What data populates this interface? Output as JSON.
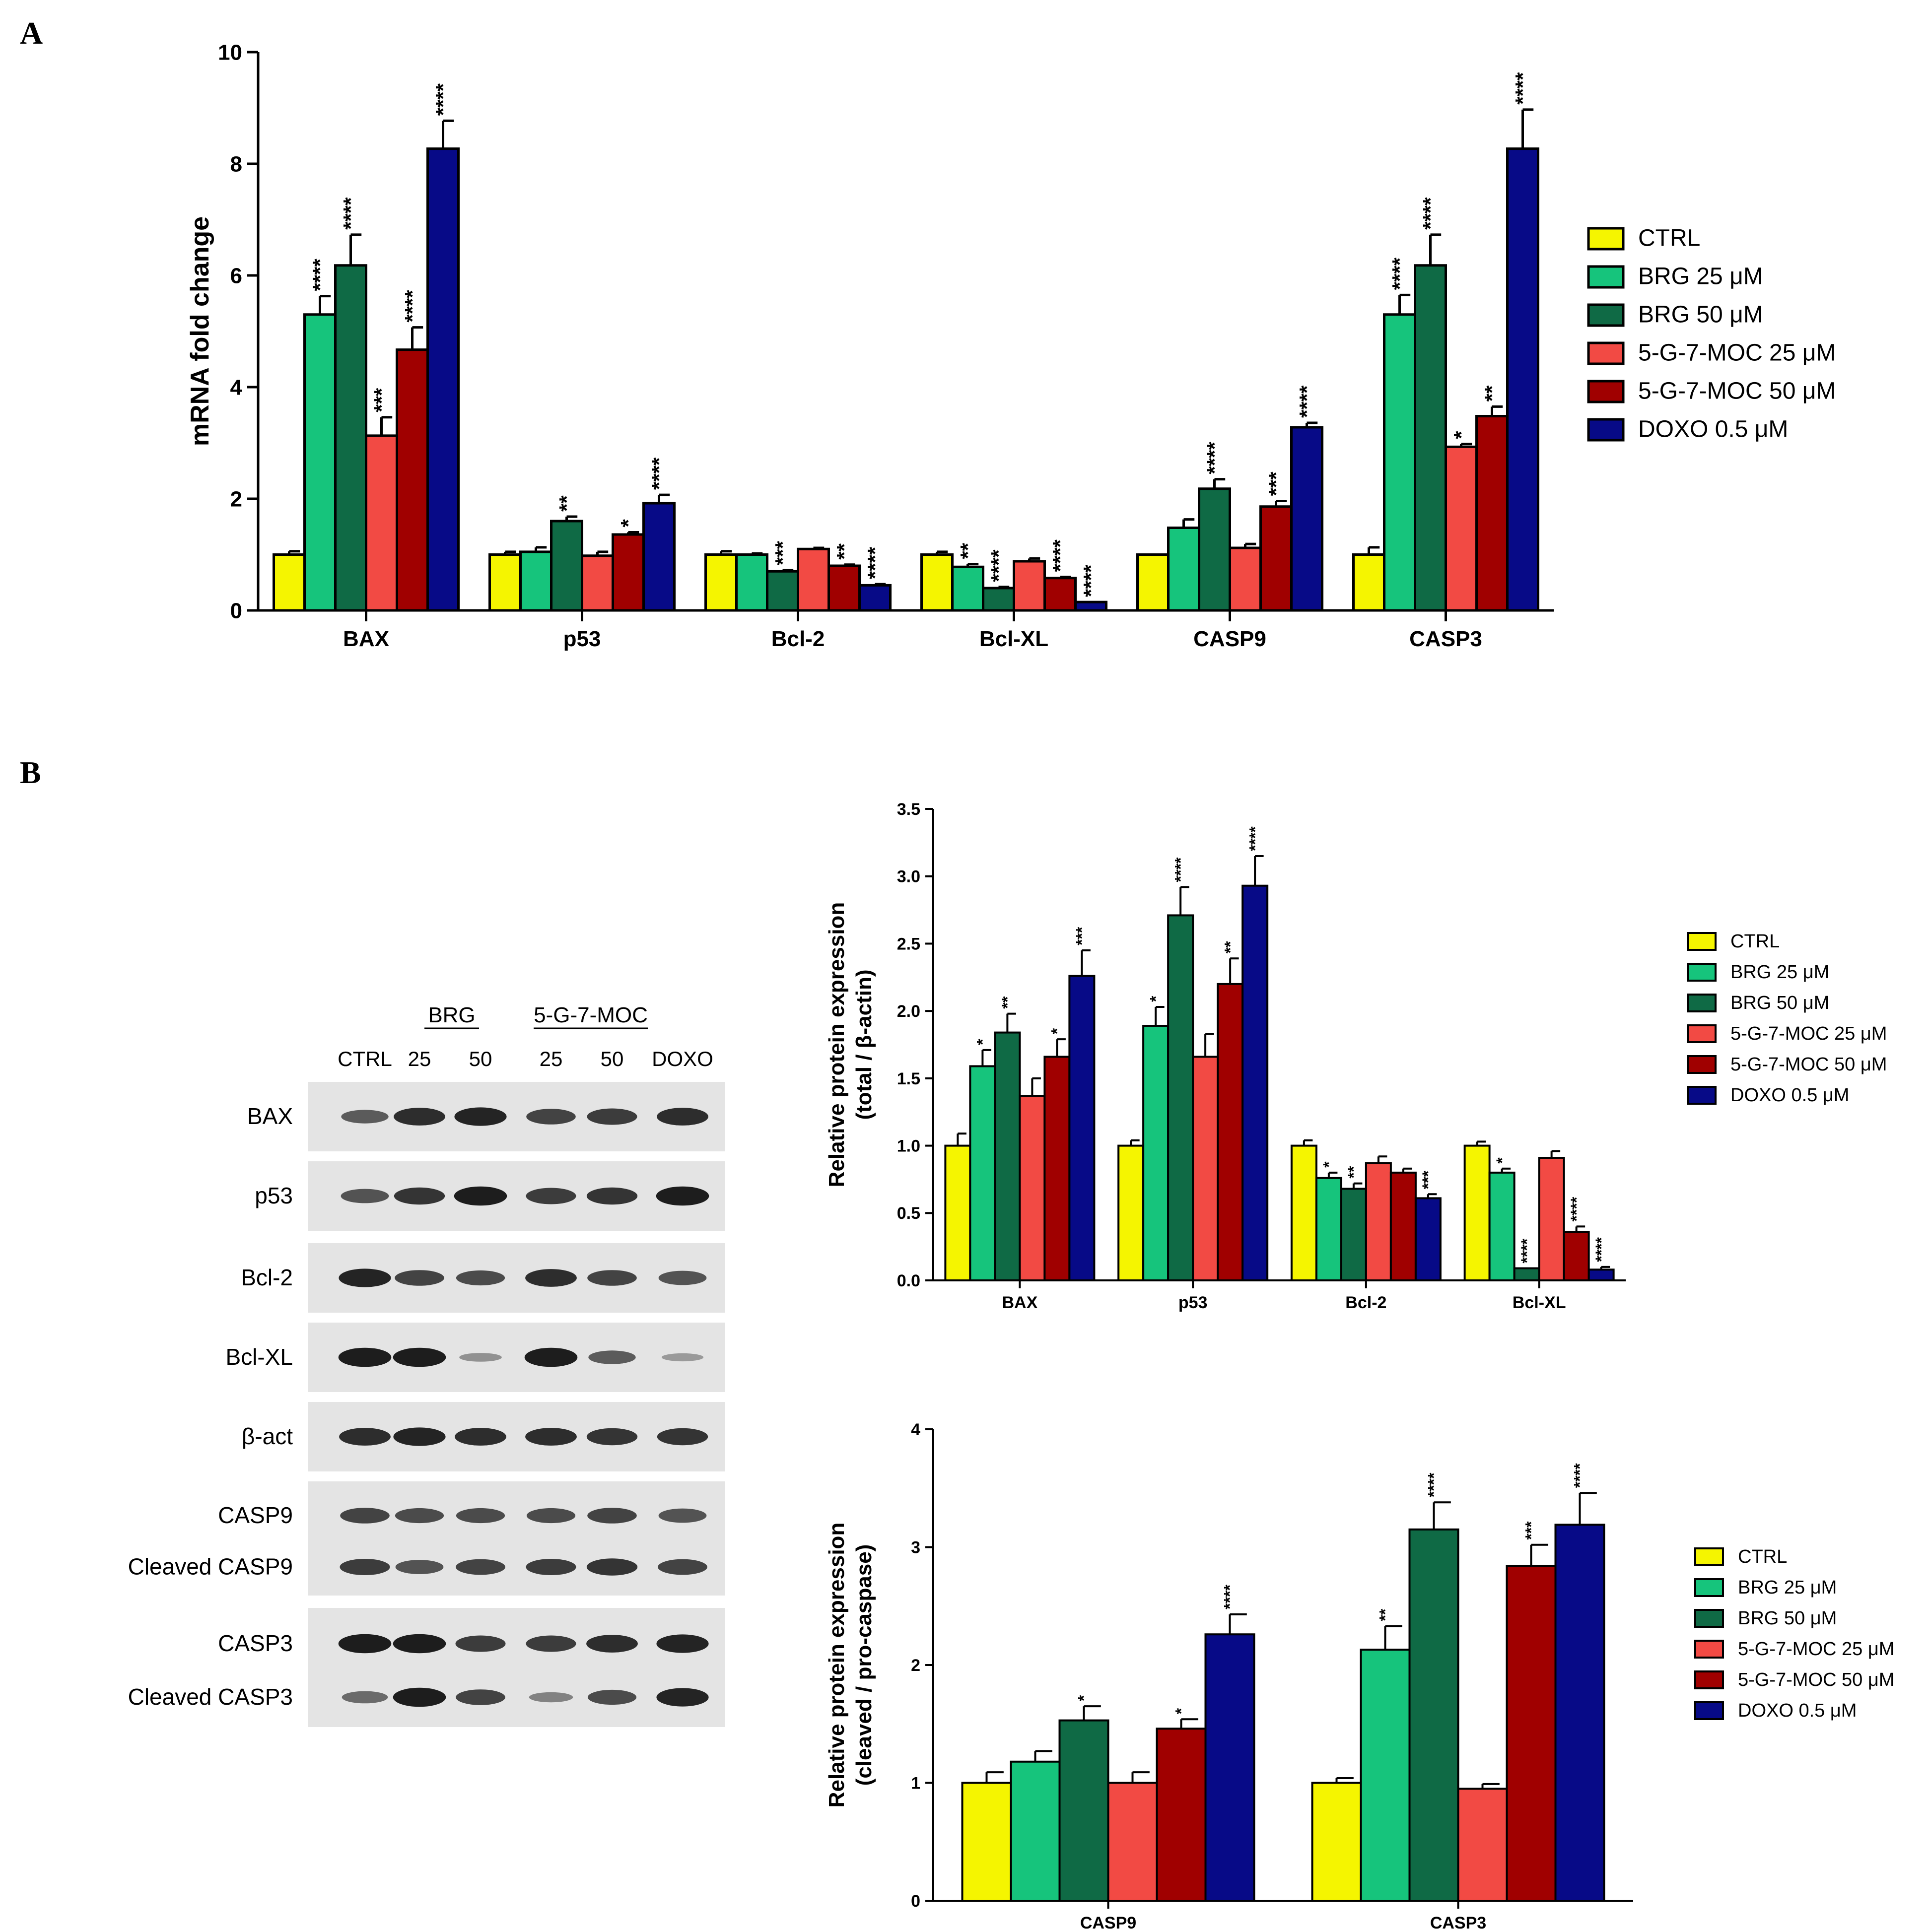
{
  "panel_a_label": "A",
  "panel_b_label": "B",
  "colors": {
    "series": [
      "#f5f500",
      "#16c47c",
      "#0f6a45",
      "#f24a44",
      "#a00000",
      "#070a87"
    ],
    "axis": "#000000",
    "blot_bg": "#e4e4e4",
    "band": "#151515"
  },
  "chart_data": [
    {
      "id": "chart-a",
      "type": "bar",
      "title": "",
      "xlabel": "",
      "ylabel": "mRNA fold change",
      "ylim": [
        0,
        10
      ],
      "yticks": [
        "0",
        "2",
        "4",
        "6",
        "8",
        "10"
      ],
      "legend_position": "right",
      "categories": [
        "BAX",
        "p53",
        "Bcl-2",
        "Bcl-XL",
        "CASP9",
        "CASP3"
      ],
      "series": [
        {
          "name": "CTRL",
          "values": [
            1.0,
            1.0,
            1.0,
            1.0,
            1.0,
            1.0
          ],
          "errors": [
            0.06,
            0.05,
            0.06,
            0.05,
            0.0,
            0.13
          ],
          "sig": [
            "",
            "",
            "",
            "",
            "",
            ""
          ]
        },
        {
          "name": "BRG 25 μM",
          "values": [
            5.3,
            1.05,
            1.0,
            0.78,
            1.48,
            5.3
          ],
          "errors": [
            0.33,
            0.08,
            0.02,
            0.05,
            0.15,
            0.35
          ],
          "sig": [
            "****",
            "",
            "",
            "**",
            "",
            "****"
          ]
        },
        {
          "name": "BRG 50 μM",
          "values": [
            6.18,
            1.6,
            0.7,
            0.4,
            2.18,
            6.18
          ],
          "errors": [
            0.55,
            0.08,
            0.02,
            0.02,
            0.17,
            0.55
          ],
          "sig": [
            "****",
            "**",
            "***",
            "****",
            "****",
            "****"
          ]
        },
        {
          "name": "5-G-7-MOC 25 μM",
          "values": [
            3.13,
            0.98,
            1.1,
            0.88,
            1.12,
            2.93
          ],
          "errors": [
            0.33,
            0.07,
            0.02,
            0.05,
            0.07,
            0.05
          ],
          "sig": [
            "***",
            "",
            "",
            "",
            "",
            "*"
          ]
        },
        {
          "name": "5-G-7-MOC 50 μM",
          "values": [
            4.67,
            1.36,
            0.8,
            0.58,
            1.86,
            3.48
          ],
          "errors": [
            0.4,
            0.04,
            0.02,
            0.02,
            0.1,
            0.17
          ],
          "sig": [
            "****",
            "*",
            "**",
            "****",
            "***",
            "**"
          ]
        },
        {
          "name": "DOXO 0.5 μM",
          "values": [
            8.27,
            1.92,
            0.45,
            0.15,
            3.28,
            8.27
          ],
          "errors": [
            0.5,
            0.15,
            0.02,
            0.0,
            0.08,
            0.7
          ],
          "sig": [
            "****",
            "****",
            "****",
            "****",
            "****",
            "****"
          ]
        }
      ]
    },
    {
      "id": "chart-b1",
      "type": "bar",
      "title": "",
      "xlabel": "",
      "ylabel": [
        "Relative protein expression",
        "(total / β-actin)"
      ],
      "ylim": [
        0,
        3.5
      ],
      "yticks": [
        "0.0",
        "0.5",
        "1.0",
        "1.5",
        "2.0",
        "2.5",
        "3.0",
        "3.5"
      ],
      "legend_position": "right",
      "categories": [
        "BAX",
        "p53",
        "Bcl-2",
        "Bcl-XL"
      ],
      "series": [
        {
          "name": "CTRL",
          "values": [
            1.0,
            1.0,
            1.0,
            1.0
          ],
          "errors": [
            0.09,
            0.04,
            0.04,
            0.03
          ],
          "sig": [
            "",
            "",
            "",
            ""
          ]
        },
        {
          "name": "BRG 25 μM",
          "values": [
            1.59,
            1.89,
            0.76,
            0.8
          ],
          "errors": [
            0.12,
            0.14,
            0.04,
            0.03
          ],
          "sig": [
            "*",
            "*",
            "*",
            "*"
          ]
        },
        {
          "name": "BRG 50 μM",
          "values": [
            1.84,
            2.71,
            0.68,
            0.09
          ],
          "errors": [
            0.14,
            0.21,
            0.04,
            0.0
          ],
          "sig": [
            "**",
            "****",
            "**",
            "****"
          ]
        },
        {
          "name": "5-G-7-MOC 25 μM",
          "values": [
            1.37,
            1.66,
            0.87,
            0.91
          ],
          "errors": [
            0.13,
            0.17,
            0.05,
            0.05
          ],
          "sig": [
            "",
            "",
            "",
            ""
          ]
        },
        {
          "name": "5-G-7-MOC 50 μM",
          "values": [
            1.66,
            2.2,
            0.8,
            0.36
          ],
          "errors": [
            0.13,
            0.19,
            0.03,
            0.04
          ],
          "sig": [
            "*",
            "**",
            "",
            "****"
          ]
        },
        {
          "name": "DOXO 0.5 μM",
          "values": [
            2.26,
            2.93,
            0.61,
            0.08
          ],
          "errors": [
            0.19,
            0.22,
            0.03,
            0.02
          ],
          "sig": [
            "***",
            "****",
            "***",
            "****"
          ]
        }
      ]
    },
    {
      "id": "chart-b2",
      "type": "bar",
      "title": "",
      "xlabel": "",
      "ylabel": [
        "Relative protein expression",
        "(cleaved / pro-caspase)"
      ],
      "ylim": [
        0,
        4
      ],
      "yticks": [
        "0",
        "1",
        "2",
        "3",
        "4"
      ],
      "legend_position": "right",
      "categories": [
        "CASP9",
        "CASP3"
      ],
      "series": [
        {
          "name": "CTRL",
          "values": [
            1.0,
            1.0
          ],
          "errors": [
            0.09,
            0.04
          ],
          "sig": [
            "",
            ""
          ]
        },
        {
          "name": "BRG 25 μM",
          "values": [
            1.18,
            2.13
          ],
          "errors": [
            0.09,
            0.2
          ],
          "sig": [
            "",
            "**"
          ]
        },
        {
          "name": "BRG 50 μM",
          "values": [
            1.53,
            3.15
          ],
          "errors": [
            0.12,
            0.23
          ],
          "sig": [
            "*",
            "****"
          ]
        },
        {
          "name": "5-G-7-MOC 25 μM",
          "values": [
            1.0,
            0.95
          ],
          "errors": [
            0.09,
            0.04
          ],
          "sig": [
            "",
            ""
          ]
        },
        {
          "name": "5-G-7-MOC 50 μM",
          "values": [
            1.46,
            2.84
          ],
          "errors": [
            0.08,
            0.18
          ],
          "sig": [
            "*",
            "***"
          ]
        },
        {
          "name": "DOXO 0.5 μM",
          "values": [
            2.26,
            3.19
          ],
          "errors": [
            0.17,
            0.27
          ],
          "sig": [
            "****",
            "****"
          ]
        }
      ]
    }
  ],
  "western_blot": {
    "group_labels": [
      "BRG",
      "5-G-7-MOC"
    ],
    "lane_labels": [
      "CTRL",
      "25",
      "50",
      "25",
      "50",
      "DOXO"
    ],
    "rows": [
      {
        "label": "BAX",
        "intensity": [
          0.55,
          0.85,
          0.9,
          0.7,
          0.75,
          0.85
        ]
      },
      {
        "label": "p53",
        "intensity": [
          0.6,
          0.8,
          0.95,
          0.75,
          0.8,
          0.95
        ]
      },
      {
        "label": "Bcl-2",
        "intensity": [
          0.9,
          0.7,
          0.65,
          0.85,
          0.7,
          0.6
        ]
      },
      {
        "label": "Bcl-XL",
        "intensity": [
          0.95,
          0.95,
          0.2,
          0.95,
          0.55,
          0.15
        ]
      },
      {
        "label": "β-act",
        "intensity": [
          0.85,
          0.9,
          0.85,
          0.85,
          0.8,
          0.8
        ]
      },
      {
        "label": "CASP9",
        "intensity": [
          0.7,
          0.65,
          0.65,
          0.65,
          0.7,
          0.6
        ]
      },
      {
        "label": "Cleaved CASP9",
        "intensity": [
          0.75,
          0.6,
          0.7,
          0.75,
          0.8,
          0.7
        ]
      },
      {
        "label": "CASP3",
        "intensity": [
          0.95,
          0.95,
          0.75,
          0.75,
          0.85,
          0.9
        ]
      },
      {
        "label": "Cleaved CASP3",
        "intensity": [
          0.45,
          0.95,
          0.7,
          0.3,
          0.65,
          0.9
        ]
      }
    ]
  }
}
